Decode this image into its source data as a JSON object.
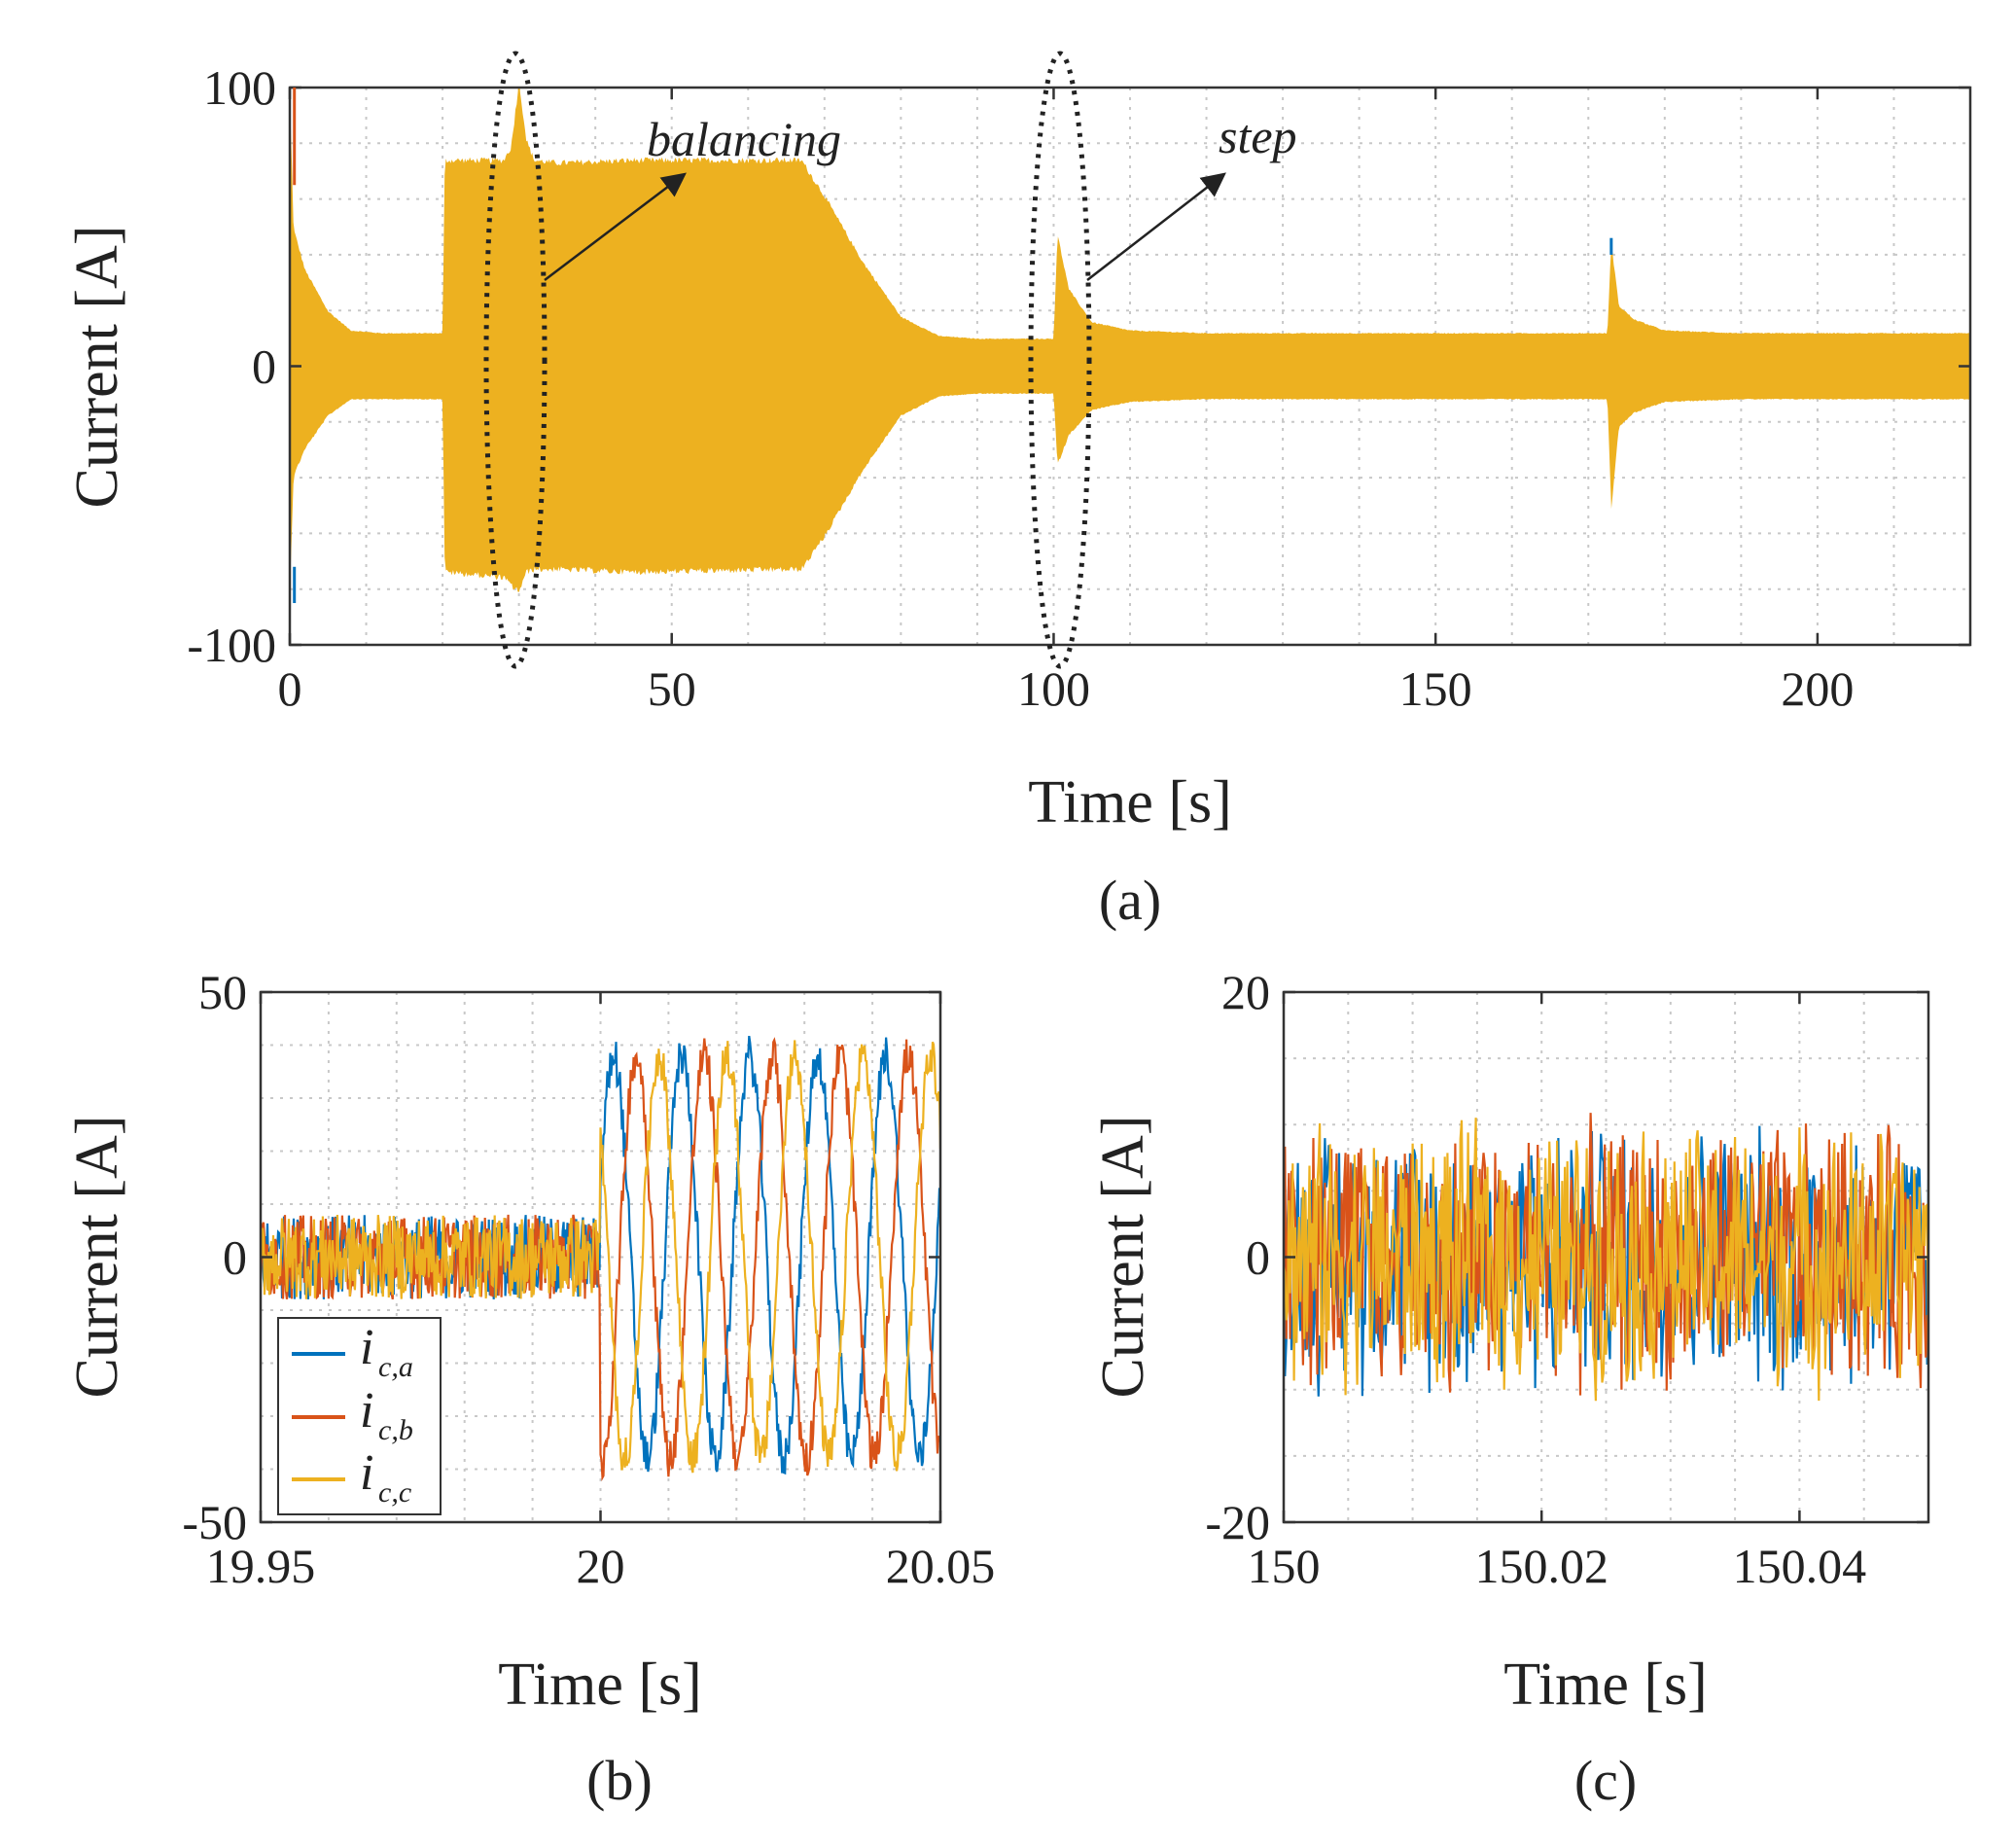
{
  "colors": {
    "phase_a": "#0072BD",
    "phase_b": "#D95319",
    "phase_c": "#EDB120",
    "ellipse": "#222222"
  },
  "chart_data": [
    {
      "id": "a",
      "type": "line",
      "caption": "(a)",
      "xlabel": "Time [s]",
      "ylabel": "Current [A]",
      "xlim": [
        0,
        220
      ],
      "ylim": [
        -100,
        100
      ],
      "xticks": [
        0,
        50,
        100,
        150,
        200
      ],
      "yticks": [
        -100,
        0,
        100
      ],
      "xtick_labels": [
        "0",
        "50",
        "100",
        "150",
        "200"
      ],
      "ytick_labels": [
        "-100",
        "0",
        "100"
      ],
      "envelope": {
        "t": [
          0,
          0.5,
          2,
          5,
          8,
          12,
          20,
          20.3,
          28,
          29,
          30,
          31,
          32,
          35,
          45,
          67,
          70,
          75,
          80,
          85,
          90,
          99.5,
          100,
          100.5,
          102,
          105,
          110,
          120,
          150,
          172.5,
          173,
          174,
          176,
          180,
          190,
          220
        ],
        "upper": [
          100,
          50,
          35,
          20,
          13,
          12,
          12,
          75,
          75,
          80,
          104,
          82,
          75,
          74,
          75,
          75,
          62,
          38,
          18,
          11,
          10,
          10,
          10,
          48,
          28,
          16,
          13,
          12,
          12,
          12,
          45,
          22,
          17,
          13,
          12,
          12
        ],
        "lower": [
          -82,
          -40,
          -30,
          -18,
          -12,
          -12,
          -12,
          -75,
          -77,
          -80,
          -82,
          -75,
          -74,
          -74,
          -75,
          -74,
          -62,
          -38,
          -18,
          -11,
          -10,
          -10,
          -10,
          -36,
          -25,
          -16,
          -13,
          -12,
          -12,
          -12,
          -52,
          -22,
          -17,
          -13,
          -12,
          -12
        ]
      },
      "annotations": [
        {
          "text": "balancing",
          "target_t": 31,
          "target_current": 40
        },
        {
          "text": "step",
          "target_t": 105,
          "target_current": 40
        }
      ]
    },
    {
      "id": "b",
      "type": "line",
      "caption": "(b)",
      "xlabel": "Time [s]",
      "ylabel": "Current [A]",
      "xlim": [
        19.95,
        20.05
      ],
      "ylim": [
        -50,
        50
      ],
      "xticks": [
        19.95,
        20,
        20.05
      ],
      "yticks": [
        -50,
        0,
        50
      ],
      "xtick_labels": [
        "19.95",
        "20",
        "20.05"
      ],
      "ytick_labels": [
        "-50",
        "0",
        "50"
      ],
      "step_time": 20.0,
      "noise_before": 8,
      "amplitude_after": 38,
      "ripple_after": 4,
      "frequency_hz": 100,
      "legend": [
        {
          "main": "i",
          "sub": "c,a"
        },
        {
          "main": "i",
          "sub": "c,b"
        },
        {
          "main": "i",
          "sub": "c,c"
        }
      ],
      "series": [
        {
          "name": "i_c,a",
          "phase_deg": 0
        },
        {
          "name": "i_c,b",
          "phase_deg": -120
        },
        {
          "name": "i_c,c",
          "phase_deg": 120
        }
      ]
    },
    {
      "id": "c",
      "type": "line",
      "caption": "(c)",
      "xlabel": "Time [s]",
      "ylabel": "Current [A]",
      "xlim": [
        150,
        150.05
      ],
      "ylim": [
        -20,
        20
      ],
      "xticks": [
        150,
        150.02,
        150.04
      ],
      "yticks": [
        -20,
        0,
        20
      ],
      "xtick_labels": [
        "150",
        "150.02",
        "150.04"
      ],
      "ytick_labels": [
        "-20",
        "0",
        "20"
      ],
      "noise_amplitude": 11,
      "series": [
        {
          "name": "i_c,a"
        },
        {
          "name": "i_c,b"
        },
        {
          "name": "i_c,c"
        }
      ]
    }
  ]
}
